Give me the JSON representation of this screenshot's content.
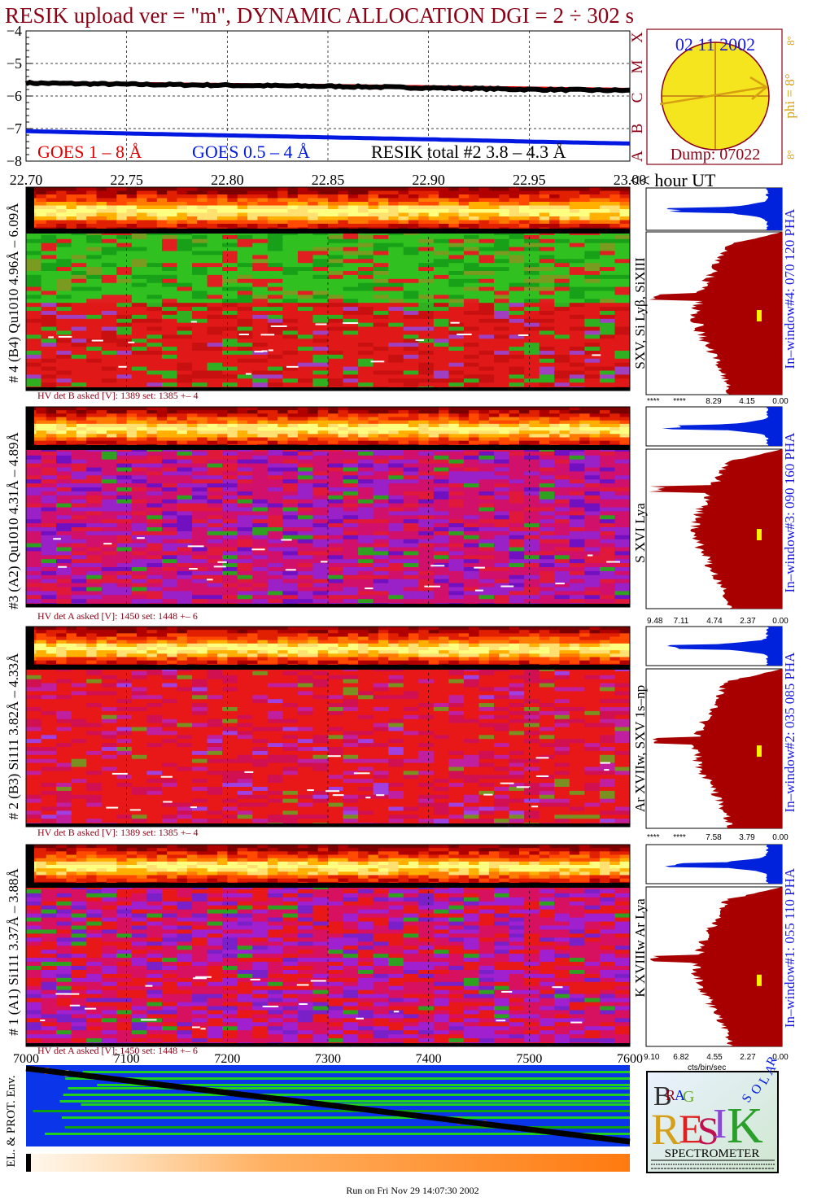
{
  "title": "RESIK upload ver = \"m\", DYNAMIC ALLOCATION  DGI =   2 ÷ 302 s",
  "goes": {
    "date": "02 11 2002",
    "dump": "Dump: 07022",
    "phi": "phi =  8°",
    "phi_ticks": [
      "8°",
      "8°",
      "8°"
    ],
    "class_letters": [
      "X",
      "M",
      "C",
      "B",
      "A"
    ],
    "legend_goes18": "GOES 1 – 8 Å",
    "legend_goes054": "GOES 0.5 – 4 Å",
    "legend_resik": "RESIK total #2  3.8 – 4.3 Å",
    "hour_label": "<< hour UT",
    "colors": {
      "goes18": "#e00000",
      "goes054": "#0018e0",
      "resik": "#000000",
      "sun": "#f5e51e",
      "sun_edge": "#8a0015",
      "arrow": "#d6a010",
      "title": "#8a0015",
      "date": "#1a1ae0"
    }
  },
  "chart_data": [
    {
      "type": "line",
      "title": "RESIK upload ver = \"m\", DYNAMIC ALLOCATION  DGI =   2 ÷ 302 s",
      "xlabel": "<< hour UT",
      "ylabel": "",
      "xlim": [
        22.7,
        23.0
      ],
      "ylim": [
        -8,
        -4
      ],
      "x_ticks": [
        "22.70",
        "22.75",
        "22.80",
        "22.85",
        "22.90",
        "22.95",
        "23.00"
      ],
      "y_ticks": [
        "−4",
        "−5",
        "−6",
        "−7",
        "−8"
      ],
      "grid": true,
      "series": [
        {
          "name": "GOES 1 – 8 Å",
          "x": [
            22.7,
            22.75,
            22.8,
            22.85,
            22.9,
            22.95,
            23.0
          ],
          "values": [
            -5.57,
            -5.6,
            -5.63,
            -5.66,
            -5.7,
            -5.74,
            -5.78
          ]
        },
        {
          "name": "GOES 0.5 – 4 Å",
          "x": [
            22.7,
            22.75,
            22.8,
            22.85,
            22.9,
            22.95,
            23.0
          ],
          "values": [
            -7.08,
            -7.15,
            -7.21,
            -7.27,
            -7.33,
            -7.4,
            -7.46
          ]
        },
        {
          "name": "RESIK total #2  3.8 – 4.3 Å",
          "x": [
            22.7,
            22.75,
            22.8,
            22.85,
            22.9,
            22.95,
            23.0
          ],
          "values": [
            -5.6,
            -5.64,
            -5.67,
            -5.7,
            -5.75,
            -5.8,
            -5.83
          ]
        }
      ]
    },
    {
      "type": "heatmap",
      "panels": [
        {
          "channel": "# 4 (B4) Qu1010 4.96Å – 6.09Å",
          "lines": "SXV, Si Lyβ, SiXIII",
          "window": "In–window#4:  070 120 PHA",
          "hv": "HV det B asked [V]:  1389 set:  1385 +–   4",
          "pha_ticks": [
            "****",
            "****",
            "8.29",
            "4.15",
            "0.00"
          ]
        },
        {
          "channel": "#3 (A2) Qu1010  4.31Å – 4.89Å",
          "lines": "S XVI Lya",
          "window": "In–window#3:  090 160 PHA",
          "hv": "HV det A asked [V]:  1450 set:  1448 +–   6",
          "pha_ticks": [
            "9.48",
            "7.11",
            "4.74",
            "2.37",
            "0.00"
          ]
        },
        {
          "channel": "# 2 (B3) Si111  3.82Å – 4.33Å",
          "lines": "Ar XVIIw,  SXV 1s–np",
          "window": "In–window#2:  035 085 PHA",
          "hv": "HV det B asked [V]:  1389 set:  1385 +–   4",
          "pha_ticks": [
            "****",
            "****",
            "7.58",
            "3.79",
            "0.00"
          ]
        },
        {
          "channel": "# 1 (A1) Si111  3.37Å – 3.88Å",
          "lines": "K XVIIIw  Ar Lya",
          "window": "In–window#1:  055 110 PHA",
          "hv": "HV det A asked [V]:  1450 set:  1448 +–   6",
          "pha_ticks": [
            "9.10",
            "6.82",
            "4.55",
            "2.27",
            "0.00"
          ]
        }
      ],
      "pha_xlabel": "cts/bin/sec"
    },
    {
      "type": "line",
      "ylabel": "EL. & PROT. Env.",
      "xlim": [
        7000,
        7600
      ],
      "x_ticks": [
        "7000",
        "7100",
        "7200",
        "7300",
        "7400",
        "7500",
        "7600"
      ],
      "series": [
        {
          "name": "",
          "x": [
            7000,
            7600
          ],
          "values": [
            0.96,
            0.06
          ]
        }
      ]
    }
  ],
  "logo": {
    "letters": [
      "B",
      "R",
      "A",
      "G",
      "R",
      "E",
      "S",
      "I",
      "K",
      "S",
      "O",
      "L",
      "A",
      "R"
    ],
    "caption": "SPECTROMETER",
    "small_text": "RESIK SPECTROMETER – BRAGG SOLAR"
  },
  "footer": "Run on Fri Nov 29 14:07:30 2002",
  "colors": {
    "pha_fill": "#a80000",
    "pha_top": "#0022dd",
    "pha_marker": "#ffee00",
    "env_bg": "#0a35e8",
    "env_line": "#000000"
  }
}
